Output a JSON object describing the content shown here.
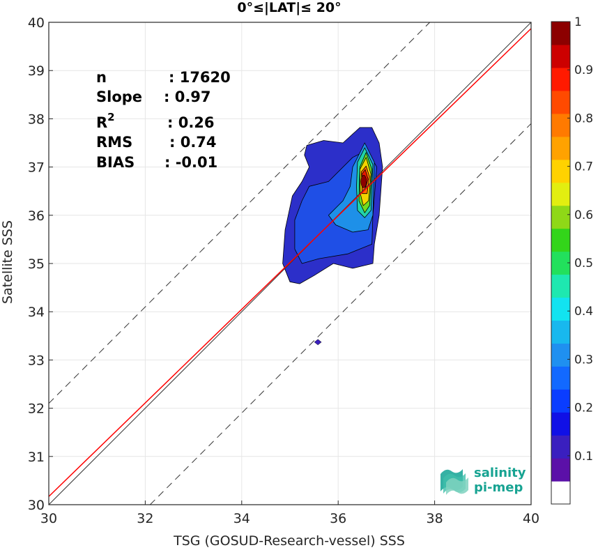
{
  "chart_data": {
    "type": "heatmap",
    "title": "0°≤|LAT|≤ 20°",
    "xlabel": "TSG (GOSUD-Research-vessel) SSS",
    "ylabel": "Satellite SSS",
    "xlim": [
      30,
      40
    ],
    "ylim": [
      30,
      40
    ],
    "xticks": [
      "30",
      "32",
      "34",
      "36",
      "38",
      "40"
    ],
    "yticks": [
      "30",
      "31",
      "32",
      "33",
      "34",
      "35",
      "36",
      "37",
      "38",
      "39",
      "40"
    ],
    "grid": true,
    "stats": [
      {
        "label": "n",
        "sep": ":",
        "value": "17620"
      },
      {
        "label": "Slope",
        "sep": ":",
        "value": "0.97"
      },
      {
        "label": "R",
        "sup": "2",
        "sep": ":",
        "value": "0.26"
      },
      {
        "label": "RMS",
        "sep": ":",
        "value": "0.74"
      },
      {
        "label": "BIAS",
        "sep": ":",
        "value": "-0.01"
      }
    ],
    "identity_line": {
      "slope": 1,
      "intercept": 0,
      "color": "#333333"
    },
    "regression_line": {
      "slope": 0.97,
      "intercept": 1.07,
      "color": "#ff0000"
    },
    "offset_lines": [
      {
        "intercept": 2.1
      },
      {
        "intercept": -2.1
      }
    ],
    "density_peak": {
      "x": 36.5,
      "y": 36.7,
      "value": 1.0
    },
    "isolated_point": {
      "x": 35.58,
      "y": 33.37
    },
    "contour_levels": [
      {
        "level": 0.05,
        "color": "#2c2fc9",
        "points": [
          [
            35.35,
            37.45
          ],
          [
            35.7,
            37.55
          ],
          [
            36.1,
            37.5
          ],
          [
            36.45,
            37.82
          ],
          [
            36.7,
            37.82
          ],
          [
            36.85,
            37.5
          ],
          [
            36.92,
            37.0
          ],
          [
            36.85,
            36.0
          ],
          [
            36.75,
            35.4
          ],
          [
            36.72,
            35.0
          ],
          [
            36.3,
            34.9
          ],
          [
            35.9,
            35.0
          ],
          [
            35.5,
            34.75
          ],
          [
            35.2,
            34.58
          ],
          [
            35.0,
            34.62
          ],
          [
            34.85,
            35.0
          ],
          [
            34.9,
            35.7
          ],
          [
            35.05,
            36.4
          ],
          [
            35.25,
            36.7
          ],
          [
            35.4,
            37.0
          ],
          [
            35.3,
            37.25
          ]
        ]
      },
      {
        "level": 0.15,
        "color": "#1f4fe6",
        "points": [
          [
            35.4,
            36.6
          ],
          [
            35.8,
            36.7
          ],
          [
            36.3,
            37.2
          ],
          [
            36.6,
            37.35
          ],
          [
            36.8,
            37.0
          ],
          [
            36.72,
            36.0
          ],
          [
            36.7,
            35.4
          ],
          [
            36.2,
            35.2
          ],
          [
            35.6,
            35.1
          ],
          [
            35.25,
            35.0
          ],
          [
            35.1,
            35.3
          ],
          [
            35.1,
            35.9
          ],
          [
            35.25,
            36.3
          ]
        ]
      },
      {
        "level": 0.3,
        "color": "#1e90e8",
        "points": [
          [
            36.3,
            37.0
          ],
          [
            36.55,
            37.5
          ],
          [
            36.75,
            37.1
          ],
          [
            36.72,
            36.0
          ],
          [
            36.62,
            35.7
          ],
          [
            36.3,
            35.65
          ],
          [
            35.95,
            35.8
          ],
          [
            35.8,
            36.0
          ],
          [
            36.1,
            36.3
          ],
          [
            36.25,
            36.6
          ]
        ]
      },
      {
        "level": 0.45,
        "color": "#22d3a8",
        "points": [
          [
            36.4,
            37.1
          ],
          [
            36.55,
            37.4
          ],
          [
            36.72,
            37.05
          ],
          [
            36.68,
            36.1
          ],
          [
            36.55,
            35.95
          ],
          [
            36.4,
            36.1
          ],
          [
            36.38,
            36.6
          ]
        ]
      },
      {
        "level": 0.6,
        "color": "#6fdc20",
        "points": [
          [
            36.45,
            37.0
          ],
          [
            36.58,
            37.3
          ],
          [
            36.7,
            36.95
          ],
          [
            36.65,
            36.2
          ],
          [
            36.55,
            36.05
          ],
          [
            36.43,
            36.3
          ]
        ]
      },
      {
        "level": 0.7,
        "color": "#f2d500",
        "points": [
          [
            36.45,
            36.95
          ],
          [
            36.58,
            37.2
          ],
          [
            36.68,
            36.85
          ],
          [
            36.63,
            36.3
          ],
          [
            36.52,
            36.2
          ],
          [
            36.46,
            36.45
          ]
        ]
      },
      {
        "level": 0.8,
        "color": "#ff6a00",
        "points": [
          [
            36.48,
            36.9
          ],
          [
            36.58,
            37.02
          ],
          [
            36.65,
            36.8
          ],
          [
            36.6,
            36.45
          ],
          [
            36.5,
            36.45
          ]
        ]
      },
      {
        "level": 0.9,
        "color": "#e81a00",
        "points": [
          [
            36.49,
            36.85
          ],
          [
            36.56,
            36.95
          ],
          [
            36.62,
            36.75
          ],
          [
            36.57,
            36.58
          ],
          [
            36.5,
            36.62
          ]
        ]
      }
    ],
    "colorbar": {
      "min": 0,
      "max": 1,
      "ticks": [
        "0.1",
        "0.2",
        "0.3",
        "0.4",
        "0.5",
        "0.6",
        "0.7",
        "0.8",
        "0.9",
        "1"
      ],
      "colors": [
        "#ffffff",
        "#5b10a8",
        "#3a1fbf",
        "#1010e6",
        "#0a3dff",
        "#1269ff",
        "#1f90f0",
        "#18b8ee",
        "#12e3f0",
        "#1ee8b0",
        "#22e05c",
        "#33d51a",
        "#8fd817",
        "#e2ee10",
        "#ffd200",
        "#ffa200",
        "#ff7a00",
        "#ff4a00",
        "#ff1a00",
        "#cc0000",
        "#8c0000"
      ]
    }
  },
  "logo": {
    "line1": "salinity",
    "line2": "pi-mep",
    "color": "#17a392"
  }
}
